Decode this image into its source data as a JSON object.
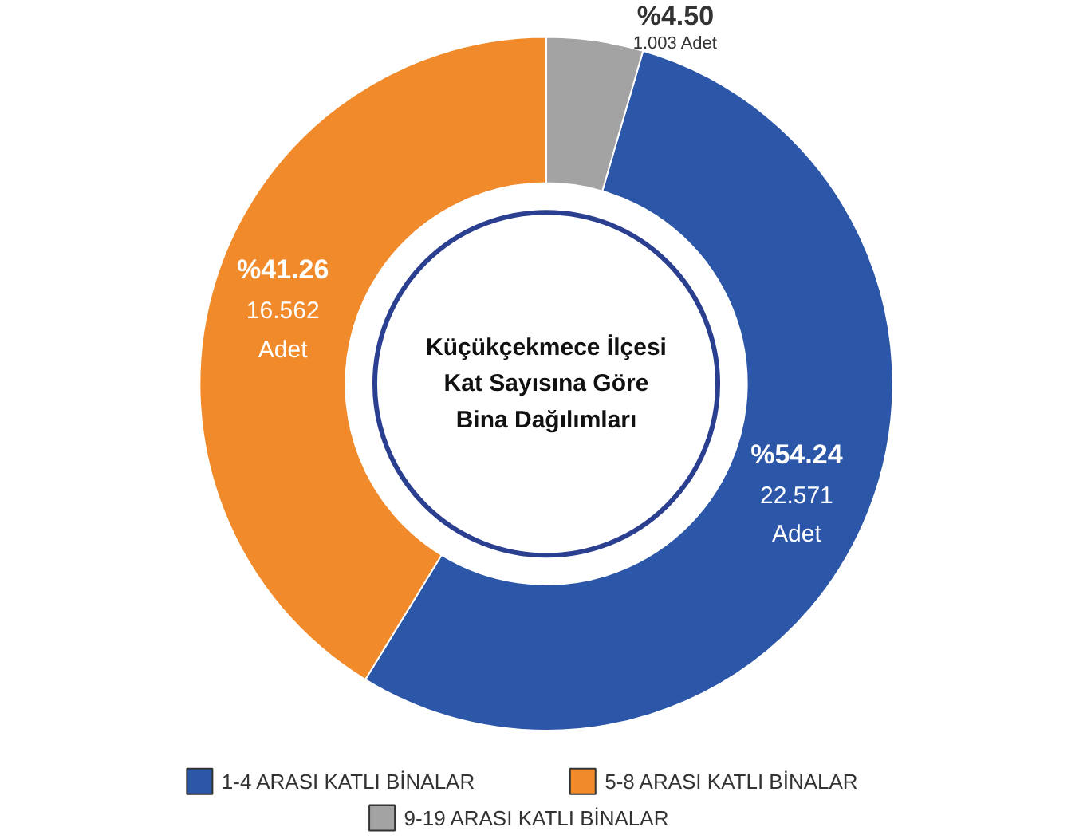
{
  "chart_data": {
    "type": "donut",
    "title": "Küçükçekmece İlçesi\nKat Sayısına Göre\nBina Dağılımları",
    "categories": [
      "1-4 ARASI KATLI BİNALAR",
      "5-8 ARASI KATLI BİNALAR",
      "9-19 ARASI KATLI BİNALAR"
    ],
    "values": [
      54.24,
      41.26,
      4.5
    ],
    "colors": [
      "#2c56a8",
      "#f08a2a",
      "#a3a3a3"
    ],
    "value_labels": [
      "%54.24\n22.571\nAdet",
      "%41.26\n16.562\nAdet",
      "%4.50\n1.003 Adet"
    ],
    "legend": "bottom"
  }
}
